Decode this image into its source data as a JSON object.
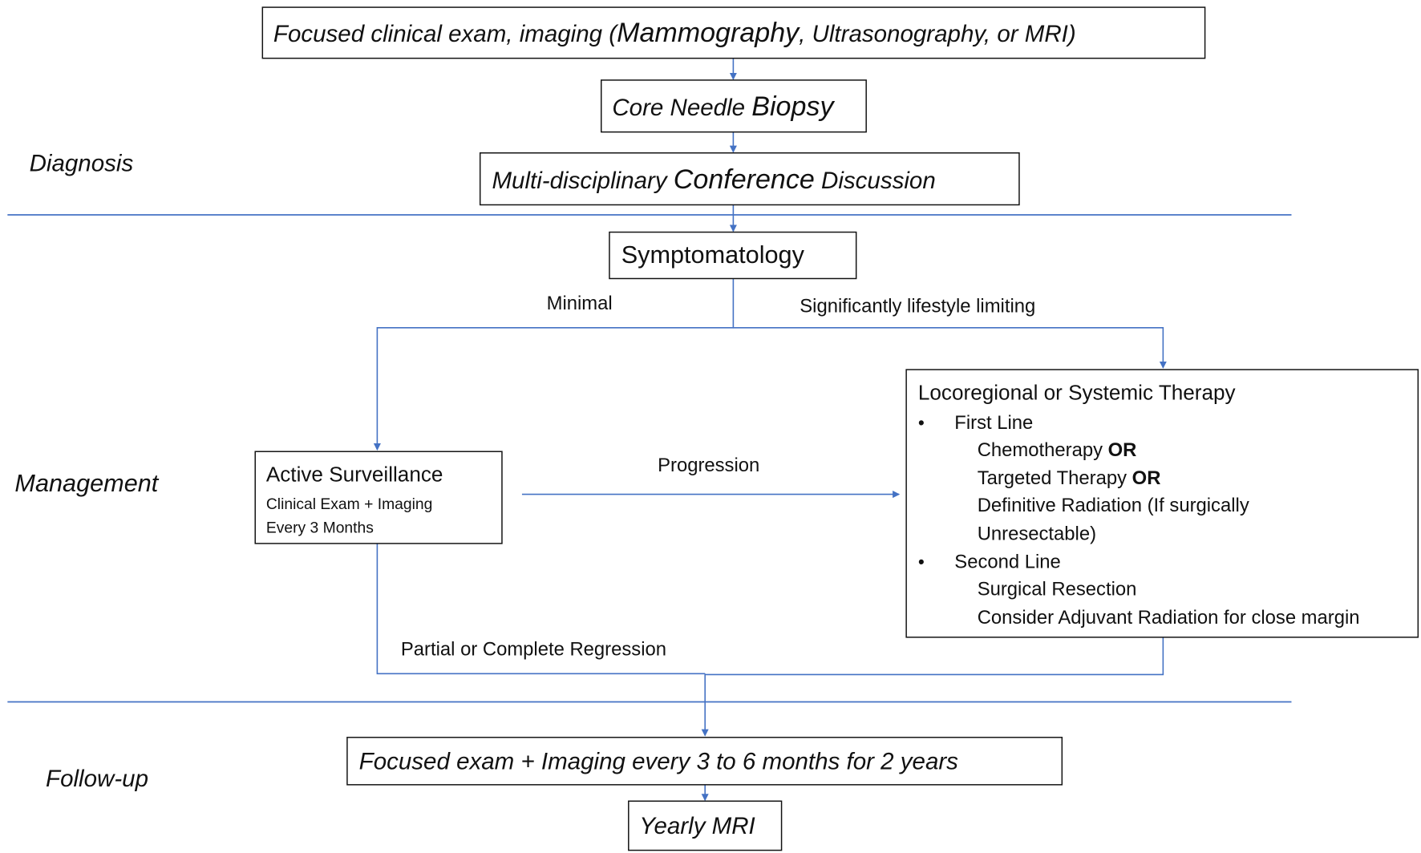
{
  "phases": {
    "diagnosis": "Diagnosis",
    "management": "Management",
    "follow_up": "Follow-up"
  },
  "diagnosis": {
    "exam_box": {
      "part1": "Focused clinical exam, imaging (",
      "part2": "Mammography",
      "part3": ", Ultrasonography, or MRI)"
    },
    "biopsy_box": {
      "part1": "Core Needle ",
      "part2": "Biopsy"
    },
    "conference_box": {
      "part1": "Multi-disciplinary ",
      "part2": "Conference",
      "part3": " Discussion"
    }
  },
  "management": {
    "symptomatology": "Symptomatology",
    "edge_minimal": "Minimal",
    "edge_significant": "Significantly lifestyle limiting",
    "edge_progression": "Progression",
    "edge_regression": "Partial or Complete Regression",
    "surveillance": {
      "title": "Active Surveillance",
      "line1": "Clinical Exam + Imaging",
      "line2": "Every 3 Months"
    },
    "therapy": {
      "title": "Locoregional  or Systemic Therapy",
      "bullet": "•",
      "first_line": "First Line",
      "chemo": "Chemotherapy ",
      "or1": "OR",
      "targeted": "Targeted Therapy ",
      "or2": "OR",
      "radiation1": "Definitive Radiation (If surgically",
      "radiation2": "Unresectable)",
      "second_line": "Second Line",
      "resection": "Surgical Resection",
      "adjuvant": "Consider Adjuvant Radiation for close margin"
    }
  },
  "follow_up": {
    "imaging_box": "Focused exam + Imaging every 3 to 6 months for 2 years",
    "mri_box": "Yearly MRI"
  },
  "colors": {
    "connector": "#4472c4",
    "box_border": "#111111"
  }
}
